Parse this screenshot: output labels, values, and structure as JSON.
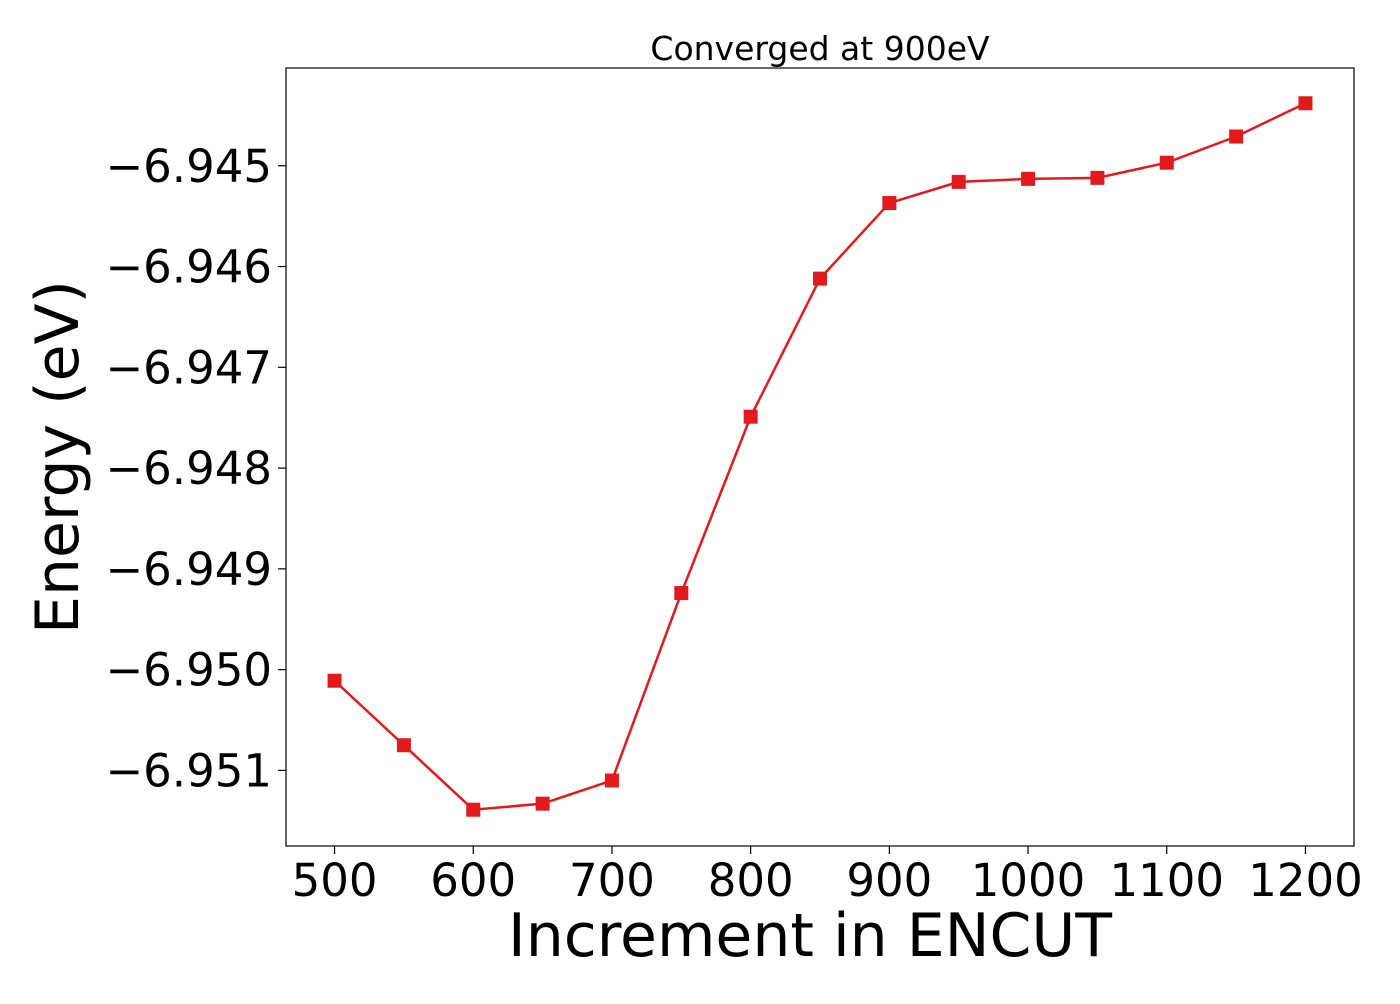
{
  "chart_data": {
    "type": "line",
    "title": "Converged at 900eV",
    "xlabel": "Increment in ENCUT",
    "ylabel": "Energy (eV)",
    "xlim": [
      465,
      1235
    ],
    "ylim": [
      -6.95175,
      -6.94403
    ],
    "x_ticks": [
      500,
      600,
      700,
      800,
      900,
      1000,
      1100,
      1200
    ],
    "x_tick_labels": [
      "500",
      "600",
      "700",
      "800",
      "900",
      "1000",
      "1100",
      "1200"
    ],
    "y_ticks": [
      -6.945,
      -6.946,
      -6.947,
      -6.948,
      -6.949,
      -6.95,
      -6.951
    ],
    "y_tick_labels": [
      "−6.945",
      "−6.946",
      "−6.947",
      "−6.948",
      "−6.949",
      "−6.950",
      "−6.951"
    ],
    "grid": false,
    "legend": "none",
    "series": [
      {
        "color": "#e31a1c",
        "marker": "square",
        "x": [
          500,
          550,
          600,
          650,
          700,
          750,
          800,
          850,
          900,
          950,
          1000,
          1050,
          1100,
          1150,
          1200
        ],
        "y": [
          -6.95011,
          -6.95075,
          -6.95139,
          -6.95133,
          -6.9511,
          -6.94924,
          -6.94749,
          -6.94612,
          -6.94537,
          -6.94516,
          -6.94513,
          -6.94512,
          -6.94497,
          -6.94471,
          -6.94438
        ]
      }
    ]
  }
}
